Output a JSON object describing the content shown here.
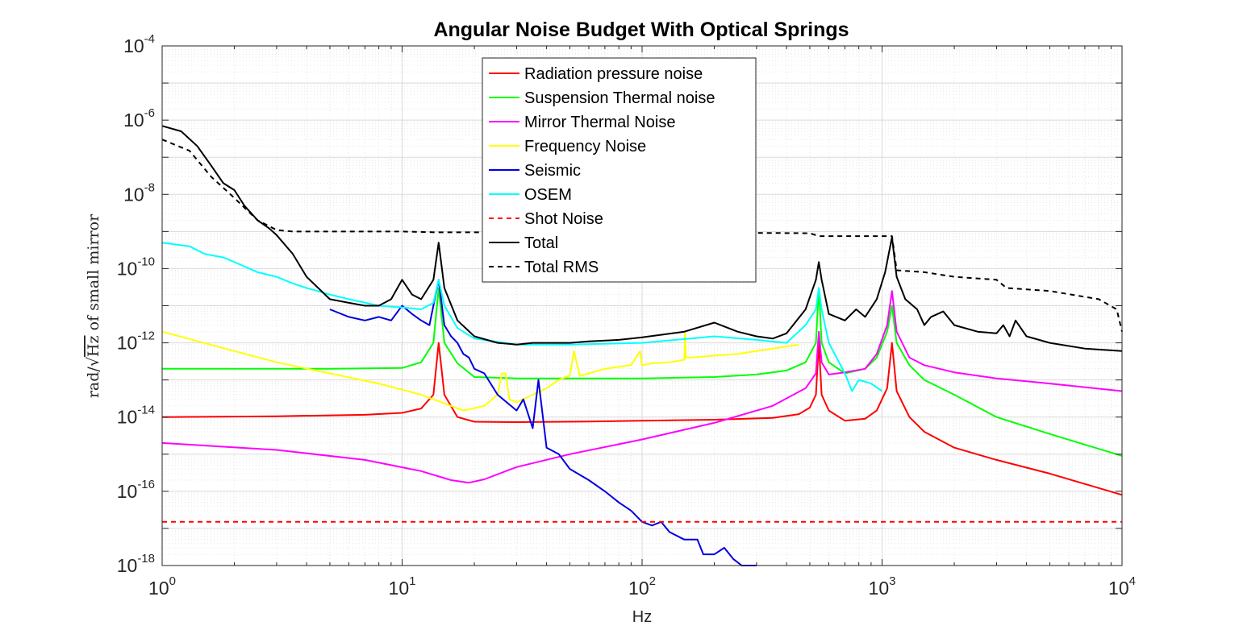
{
  "chart_data": {
    "type": "line",
    "title": "Angular Noise Budget With Optical Springs",
    "xlabel": "Hz",
    "ylabel": "rad/√Hz of small mirror",
    "ylabel_parts": {
      "pre": "rad/",
      "sqrt": "√",
      "radicand": "Hz",
      "post": " of small mirror"
    },
    "xscale": "log",
    "yscale": "log",
    "xlim": [
      1,
      10000
    ],
    "ylim": [
      1e-18,
      0.0001
    ],
    "grid": true,
    "legend_position": "top-center",
    "x_ticks": [
      {
        "value": 1,
        "base": "10",
        "exp": "0"
      },
      {
        "value": 10,
        "base": "10",
        "exp": "1"
      },
      {
        "value": 100,
        "base": "10",
        "exp": "2"
      },
      {
        "value": 1000,
        "base": "10",
        "exp": "3"
      },
      {
        "value": 10000,
        "base": "10",
        "exp": "4"
      }
    ],
    "y_ticks": [
      {
        "value": 0.0001,
        "base": "10",
        "exp": "-4"
      },
      {
        "value": 1e-06,
        "base": "10",
        "exp": "-6"
      },
      {
        "value": 1e-08,
        "base": "10",
        "exp": "-8"
      },
      {
        "value": 1e-10,
        "base": "10",
        "exp": "-10"
      },
      {
        "value": 1e-12,
        "base": "10",
        "exp": "-12"
      },
      {
        "value": 1e-14,
        "base": "10",
        "exp": "-14"
      },
      {
        "value": 1e-16,
        "base": "10",
        "exp": "-16"
      },
      {
        "value": 1e-18,
        "base": "10",
        "exp": "-18"
      }
    ],
    "series": [
      {
        "name": "Radiation pressure noise",
        "color": "#ff0000",
        "dash": "solid",
        "x": [
          1,
          3,
          7,
          10,
          12,
          13.5,
          14.2,
          15,
          17,
          20,
          30,
          60,
          100,
          200,
          350,
          450,
          500,
          530,
          545,
          560,
          600,
          700,
          850,
          950,
          1050,
          1100,
          1150,
          1300,
          1500,
          2000,
          3000,
          5000,
          10000
        ],
        "y": [
          1e-14,
          1.05e-14,
          1.15e-14,
          1.3e-14,
          1.7e-14,
          4e-14,
          1e-12,
          4e-14,
          1e-14,
          7.5e-15,
          7.3e-15,
          7.6e-15,
          8e-15,
          8.5e-15,
          9.5e-15,
          1.2e-14,
          1.8e-14,
          4e-14,
          1e-12,
          4e-14,
          1.5e-14,
          8e-15,
          9e-15,
          1.5e-14,
          6e-14,
          1e-12,
          5e-14,
          1e-14,
          4e-15,
          1.5e-15,
          7e-16,
          3e-16,
          8e-17
        ]
      },
      {
        "name": "Suspension Thermal noise",
        "color": "#00ff00",
        "dash": "solid",
        "x": [
          1,
          5,
          10,
          12,
          13.5,
          14.2,
          15,
          17,
          20,
          30,
          50,
          100,
          200,
          300,
          400,
          480,
          530,
          545,
          560,
          600,
          700,
          850,
          950,
          1050,
          1100,
          1150,
          1300,
          1500,
          2000,
          3000,
          5000,
          10000
        ],
        "y": [
          2e-13,
          2e-13,
          2.1e-13,
          3e-13,
          1e-12,
          3e-11,
          1e-12,
          2.8e-13,
          1.2e-13,
          1.1e-13,
          1.1e-13,
          1.1e-13,
          1.2e-13,
          1.4e-13,
          1.8e-13,
          3e-13,
          1e-12,
          3e-11,
          1e-12,
          3e-13,
          1.5e-13,
          2e-13,
          4e-13,
          2e-12,
          1e-11,
          1e-12,
          2.5e-13,
          1e-13,
          4e-14,
          1e-14,
          3.5e-15,
          9e-16
        ]
      },
      {
        "name": "Mirror Thermal Noise",
        "color": "#ff00ff",
        "dash": "solid",
        "x": [
          1,
          3,
          7,
          12,
          16,
          19,
          22,
          30,
          50,
          100,
          200,
          350,
          480,
          530,
          545,
          560,
          600,
          700,
          850,
          950,
          1050,
          1100,
          1150,
          1300,
          1500,
          2000,
          3000,
          5000,
          10000
        ],
        "y": [
          2e-15,
          1.3e-15,
          7e-16,
          3.5e-16,
          2e-16,
          1.7e-16,
          2.1e-16,
          4.5e-16,
          1e-15,
          2.5e-15,
          7e-15,
          2e-14,
          6e-14,
          1.5e-13,
          2e-12,
          3e-13,
          1.4e-13,
          1.6e-13,
          2e-13,
          5e-13,
          3e-12,
          2.5e-11,
          2e-12,
          4e-13,
          2.5e-13,
          1.6e-13,
          1.1e-13,
          8e-14,
          5e-14
        ]
      },
      {
        "name": "Frequency Noise",
        "color": "#ffff00",
        "dash": "solid",
        "x": [
          1,
          2,
          3,
          5,
          8,
          12,
          18,
          22,
          25,
          26,
          27,
          28,
          30,
          35,
          40,
          45,
          48,
          50,
          52,
          55,
          60,
          70,
          90,
          98,
          100,
          110,
          130,
          150,
          151,
          152,
          160,
          200,
          250,
          300,
          350,
          400,
          450
        ],
        "y": [
          2e-12,
          6e-13,
          3e-13,
          1.5e-13,
          8e-14,
          4e-14,
          1.5e-14,
          2e-14,
          4e-14,
          1.5e-13,
          1.5e-13,
          3e-14,
          2.5e-14,
          4e-14,
          6e-14,
          1e-13,
          1.2e-13,
          1.3e-13,
          6e-13,
          1.3e-13,
          1.5e-13,
          2e-13,
          2.5e-13,
          6e-13,
          2.5e-13,
          2.8e-13,
          3e-13,
          3.5e-13,
          2e-12,
          4e-13,
          4e-13,
          4.5e-13,
          5e-13,
          6e-13,
          7e-13,
          8e-13,
          9e-13
        ]
      },
      {
        "name": "Seismic",
        "color": "#0000e0",
        "dash": "solid",
        "x": [
          5,
          6,
          7,
          8,
          9,
          10,
          11,
          12,
          13,
          14.2,
          15,
          16,
          17,
          18,
          19,
          20,
          22,
          25,
          30,
          32,
          35,
          37,
          40,
          45,
          50,
          60,
          70,
          80,
          90,
          100,
          110,
          120,
          130,
          150,
          170,
          180,
          200,
          220,
          240,
          260,
          300
        ],
        "y": [
          8e-12,
          5e-12,
          4e-12,
          5e-12,
          4e-12,
          1e-11,
          6e-12,
          4e-12,
          3e-12,
          5e-11,
          3e-12,
          1.5e-12,
          1e-12,
          5e-13,
          4e-13,
          2e-13,
          1.5e-13,
          4e-14,
          1.5e-14,
          3e-14,
          5e-15,
          1e-13,
          1.5e-15,
          1e-15,
          4e-16,
          2e-16,
          1e-16,
          5e-17,
          3e-17,
          1.5e-17,
          1.2e-17,
          1.5e-17,
          8e-18,
          5e-18,
          5e-18,
          2e-18,
          2e-18,
          3e-18,
          1.5e-18,
          8e-19,
          6e-19
        ]
      },
      {
        "name": "OSEM",
        "color": "#00ffff",
        "dash": "solid",
        "x": [
          1,
          1.3,
          1.5,
          1.8,
          2,
          2.5,
          3,
          3.5,
          4,
          5,
          6,
          8,
          10,
          12,
          13.5,
          14.2,
          15,
          17,
          20,
          30,
          50,
          100,
          200,
          300,
          400,
          480,
          530,
          545,
          560,
          600,
          700,
          750,
          800,
          900,
          1000
        ],
        "y": [
          5e-10,
          4e-10,
          2.5e-10,
          2e-10,
          1.5e-10,
          8e-11,
          6e-11,
          4e-11,
          3e-11,
          2e-11,
          1.5e-11,
          1e-11,
          9e-12,
          8e-12,
          1.2e-11,
          5e-11,
          1e-11,
          2.5e-12,
          1.3e-12,
          9e-13,
          9e-13,
          1e-12,
          1.5e-12,
          1.2e-12,
          1e-12,
          3e-12,
          8e-12,
          3e-11,
          8e-12,
          1e-12,
          1.5e-13,
          5e-14,
          1e-13,
          8e-14,
          5e-14
        ]
      },
      {
        "name": "Shot Noise",
        "color": "#ff0000",
        "dash": "dashed",
        "x": [
          1,
          10000
        ],
        "y": [
          1.5e-17,
          1.5e-17
        ]
      },
      {
        "name": "Total",
        "color": "#000000",
        "dash": "solid",
        "x": [
          1,
          1.2,
          1.4,
          1.6,
          1.8,
          2,
          2.2,
          2.5,
          2.8,
          3,
          3.5,
          4,
          5,
          6,
          7,
          8,
          9,
          10,
          11,
          12,
          13.5,
          14.2,
          15,
          17,
          20,
          25,
          30,
          35,
          40,
          50,
          60,
          80,
          100,
          150,
          200,
          250,
          300,
          350,
          400,
          480,
          530,
          545,
          560,
          600,
          700,
          780,
          850,
          950,
          1030,
          1100,
          1150,
          1250,
          1400,
          1500,
          1600,
          1800,
          2000,
          2500,
          3000,
          3200,
          3400,
          3600,
          4000,
          5000,
          7000,
          10000
        ],
        "y": [
          7e-07,
          5e-07,
          2e-07,
          6e-08,
          2e-08,
          1.3e-08,
          5e-09,
          2e-09,
          1.2e-09,
          8e-10,
          2.5e-10,
          6e-11,
          1.5e-11,
          1.2e-11,
          1e-11,
          1e-11,
          1.5e-11,
          5e-11,
          2e-11,
          1.5e-11,
          5e-11,
          5e-10,
          3e-11,
          4e-12,
          1.5e-12,
          1e-12,
          9e-13,
          1e-12,
          1e-12,
          1e-12,
          1.1e-12,
          1.2e-12,
          1.4e-12,
          2e-12,
          3.5e-12,
          2e-12,
          1.5e-12,
          1.3e-12,
          1.8e-12,
          8e-12,
          5e-11,
          1.5e-10,
          5e-11,
          6e-12,
          4e-12,
          8e-12,
          5e-12,
          1.5e-11,
          8e-11,
          7e-10,
          6e-11,
          1.5e-11,
          8e-12,
          3e-12,
          5e-12,
          7e-12,
          3e-12,
          2e-12,
          1.8e-12,
          3e-12,
          1.5e-12,
          4e-12,
          1.5e-12,
          1e-12,
          7e-13,
          6e-13
        ]
      },
      {
        "name": "Total RMS",
        "color": "#000000",
        "dash": "dashed",
        "x": [
          1,
          1.3,
          1.6,
          2,
          2.5,
          3,
          3.5,
          10,
          14,
          100,
          500,
          545,
          1000,
          1100,
          1150,
          1500,
          2000,
          3000,
          3300,
          5000,
          8000,
          9500,
          10000
        ],
        "y": [
          3e-07,
          1.5e-07,
          3e-08,
          8e-09,
          2e-09,
          1.1e-09,
          1e-09,
          1e-09,
          9.5e-10,
          9.5e-10,
          9e-10,
          7.5e-10,
          7.5e-10,
          7.5e-10,
          9e-11,
          8e-11,
          6e-11,
          5e-11,
          3e-11,
          2.5e-11,
          1.5e-11,
          8e-12,
          2e-12
        ]
      }
    ]
  }
}
